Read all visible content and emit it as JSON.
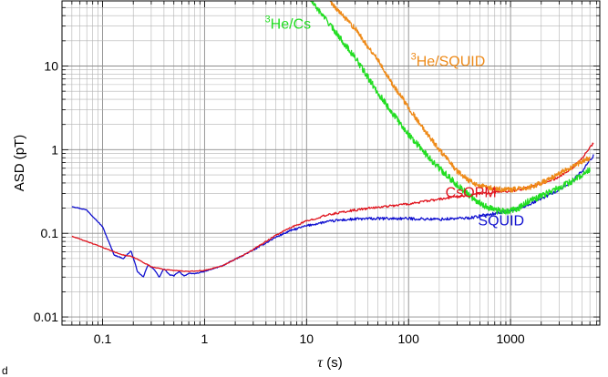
{
  "chart_data": {
    "type": "line",
    "title": "",
    "xlabel_symbol": "τ",
    "xlabel_unit": " (s)",
    "ylabel": "ASD (pT)",
    "x_scale": "log",
    "y_scale": "log",
    "xlim": [
      0.04,
      7500
    ],
    "ylim": [
      0.008,
      60
    ],
    "grid": true,
    "x_ticks": [
      {
        "value": 0.1,
        "label": "0.1"
      },
      {
        "value": 1,
        "label": "1"
      },
      {
        "value": 10,
        "label": "10"
      },
      {
        "value": 100,
        "label": "100"
      },
      {
        "value": 1000,
        "label": "1000"
      }
    ],
    "y_ticks": [
      {
        "value": 0.01,
        "label": "0.01"
      },
      {
        "value": 0.1,
        "label": "0.1"
      },
      {
        "value": 1,
        "label": "1"
      },
      {
        "value": 10,
        "label": "10"
      }
    ],
    "corner_text": "d",
    "series": [
      {
        "name": "SQUID",
        "color": "#1010d0",
        "label_superscript": "",
        "label_text": "SQUID",
        "label_at": [
          480,
          0.125
        ],
        "noise": 0.012,
        "x": [
          0.05,
          0.07,
          0.1,
          0.13,
          0.16,
          0.19,
          0.22,
          0.25,
          0.28,
          0.32,
          0.36,
          0.4,
          0.45,
          0.5,
          0.56,
          0.63,
          0.7,
          0.8,
          0.9,
          1,
          1.5,
          2,
          3,
          4,
          5,
          7,
          10,
          15,
          20,
          30,
          50,
          100,
          200,
          400,
          600,
          800,
          1000,
          1500,
          2000,
          3000,
          4000,
          5000,
          6500
        ],
        "y": [
          0.21,
          0.19,
          0.12,
          0.055,
          0.05,
          0.062,
          0.035,
          0.03,
          0.042,
          0.037,
          0.03,
          0.038,
          0.032,
          0.031,
          0.035,
          0.031,
          0.033,
          0.033,
          0.034,
          0.035,
          0.041,
          0.049,
          0.063,
          0.077,
          0.09,
          0.108,
          0.123,
          0.136,
          0.143,
          0.148,
          0.15,
          0.15,
          0.147,
          0.153,
          0.168,
          0.178,
          0.185,
          0.22,
          0.26,
          0.33,
          0.42,
          0.55,
          0.85
        ]
      },
      {
        "name": "CsOPM",
        "color": "#e0141e",
        "label_superscript": "",
        "label_text": "CsOPM",
        "label_at": [
          230,
          0.27
        ],
        "noise": 0.01,
        "x": [
          0.05,
          0.07,
          0.1,
          0.13,
          0.16,
          0.19,
          0.22,
          0.25,
          0.3,
          0.4,
          0.5,
          0.7,
          1,
          1.5,
          2,
          3,
          4,
          5,
          7,
          10,
          15,
          20,
          30,
          50,
          100,
          200,
          300,
          500,
          700,
          1000,
          1500,
          2000,
          3000,
          4000,
          5000,
          6500
        ],
        "y": [
          0.092,
          0.08,
          0.068,
          0.06,
          0.055,
          0.053,
          0.049,
          0.045,
          0.04,
          0.037,
          0.036,
          0.035,
          0.036,
          0.041,
          0.049,
          0.064,
          0.08,
          0.095,
          0.117,
          0.14,
          0.162,
          0.175,
          0.19,
          0.205,
          0.225,
          0.255,
          0.275,
          0.3,
          0.31,
          0.32,
          0.35,
          0.39,
          0.47,
          0.6,
          0.78,
          1.2
        ]
      },
      {
        "name": "³He/Cs",
        "color": "#22dd22",
        "label_superscript": "3",
        "label_text": "He/Cs",
        "label_at": [
          3.9,
          28
        ],
        "noise": 0.028,
        "x": [
          11,
          15,
          20,
          30,
          50,
          70,
          100,
          150,
          200,
          300,
          400,
          500,
          600,
          700,
          800,
          900,
          1000,
          1200,
          1500,
          2000,
          3000,
          4000,
          5000,
          6000
        ],
        "y": [
          60,
          38,
          24,
          12.5,
          4.8,
          2.7,
          1.52,
          0.87,
          0.6,
          0.38,
          0.28,
          0.23,
          0.205,
          0.19,
          0.185,
          0.183,
          0.185,
          0.2,
          0.24,
          0.28,
          0.35,
          0.42,
          0.5,
          0.58
        ]
      },
      {
        "name": "³He/SQUID",
        "color": "#ee8a18",
        "label_superscript": "3",
        "label_text": "He/SQUID",
        "label_at": [
          105,
          10
        ],
        "noise": 0.022,
        "x": [
          17,
          20,
          25,
          30,
          40,
          50,
          70,
          100,
          130,
          150,
          200,
          300,
          400,
          500,
          700,
          1000,
          1500,
          2000,
          3000,
          4000,
          5000,
          6000
        ],
        "y": [
          60,
          47,
          35,
          28,
          17,
          12,
          6,
          3.2,
          2.0,
          1.6,
          1.0,
          0.55,
          0.42,
          0.37,
          0.34,
          0.33,
          0.35,
          0.4,
          0.52,
          0.62,
          0.72,
          0.8
        ]
      }
    ]
  }
}
